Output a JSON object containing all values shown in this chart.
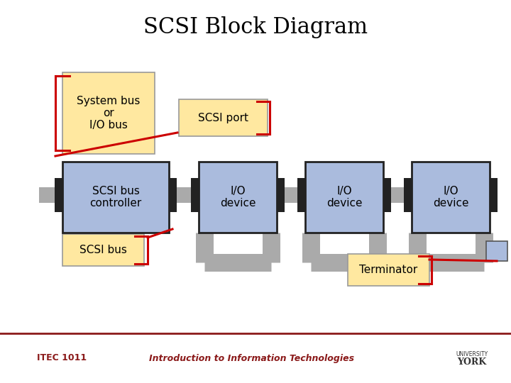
{
  "title": "SCSI Block Diagram",
  "title_fontsize": 22,
  "title_font": "serif",
  "bg_color": "#ffffff",
  "footer_text_left": "ITEC 1011",
  "footer_text_center": "Introduction to Information Technologies",
  "footer_fontsize": 9,
  "label_yellow_bg": "#FFE8A0",
  "label_yellow_ec": "#999999",
  "box_blue_bg": "#AABBDD",
  "box_blue_ec": "#222222",
  "bus_color": "#AAAAAA",
  "red_color": "#CC0000",
  "terminator_bg": "#AABBDD",
  "dark_color": "#222222",
  "footer_line_color": "#8B1A1A"
}
